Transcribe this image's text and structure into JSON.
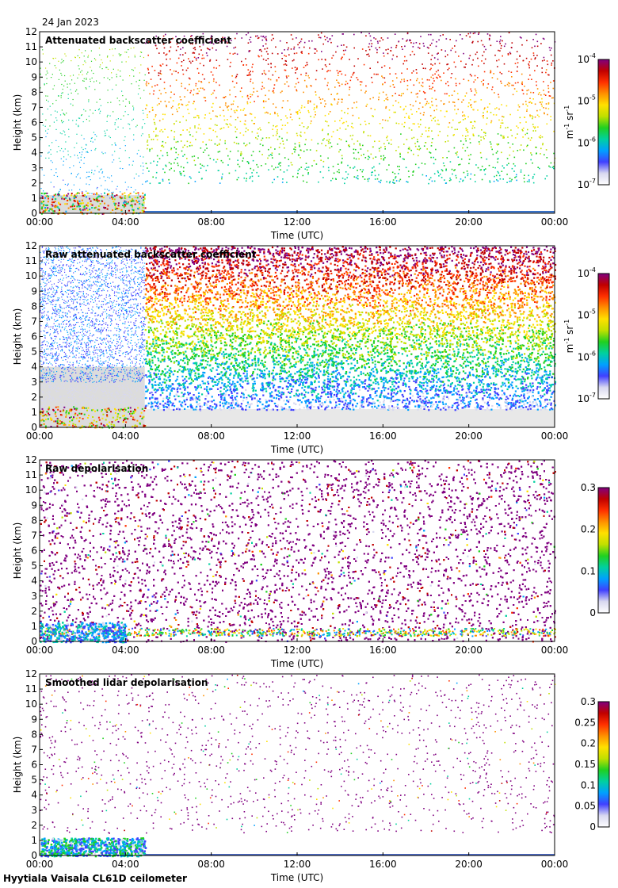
{
  "date_label": "24 Jan 2023",
  "footer_label": "Hyytiala Vaisala CL61D ceilometer",
  "chart_data": [
    {
      "type": "heatmap",
      "title": "Attenuated backscatter coefficient",
      "xlabel": "Time (UTC)",
      "ylabel": "Height (km)",
      "xticks": [
        "00:00",
        "04:00",
        "08:00",
        "12:00",
        "16:00",
        "20:00",
        "00:00"
      ],
      "yticks": [
        "0",
        "1",
        "2",
        "3",
        "4",
        "5",
        "6",
        "7",
        "8",
        "9",
        "10",
        "11",
        "12"
      ],
      "xlim_hours": [
        0,
        24
      ],
      "ylim_km": [
        0,
        12
      ],
      "colorbar": {
        "scale": "log",
        "range": [
          1e-07,
          0.0001
        ],
        "tick_labels": [
          "10^-4",
          "10^-5",
          "10^-6",
          "10^-7"
        ],
        "unit": "m-1 sr-1"
      },
      "pattern": "sparse-signal"
    },
    {
      "type": "heatmap",
      "title": "Raw attenuated backscatter coefficient",
      "xlabel": "Time (UTC)",
      "ylabel": "Height (km)",
      "xticks": [
        "00:00",
        "04:00",
        "08:00",
        "12:00",
        "16:00",
        "20:00",
        "00:00"
      ],
      "yticks": [
        "0",
        "1",
        "2",
        "3",
        "4",
        "5",
        "6",
        "7",
        "8",
        "9",
        "10",
        "11",
        "12"
      ],
      "xlim_hours": [
        0,
        24
      ],
      "ylim_km": [
        0,
        12
      ],
      "colorbar": {
        "scale": "log",
        "range": [
          1e-07,
          0.0001
        ],
        "tick_labels": [
          "10^-4",
          "10^-5",
          "10^-6",
          "10^-7"
        ],
        "unit": "m-1 sr-1"
      },
      "pattern": "dense-noise"
    },
    {
      "type": "heatmap",
      "title": "Raw depolarisation",
      "xlabel": "Time (UTC)",
      "ylabel": "Height (km)",
      "xticks": [
        "00:00",
        "04:00",
        "08:00",
        "12:00",
        "16:00",
        "20:00",
        "00:00"
      ],
      "yticks": [
        "0",
        "1",
        "2",
        "3",
        "4",
        "5",
        "6",
        "7",
        "8",
        "9",
        "10",
        "11",
        "12"
      ],
      "xlim_hours": [
        0,
        24
      ],
      "ylim_km": [
        0,
        12
      ],
      "colorbar": {
        "scale": "linear",
        "range": [
          0,
          0.3
        ],
        "tick_labels": [
          "0.3",
          "0.2",
          "0.1",
          "0"
        ],
        "unit": ""
      },
      "pattern": "purple-noise"
    },
    {
      "type": "heatmap",
      "title": "Smoothed lidar depolarisation",
      "xlabel": "Time (UTC)",
      "ylabel": "Height (km)",
      "xticks": [
        "00:00",
        "04:00",
        "08:00",
        "12:00",
        "16:00",
        "20:00",
        "00:00"
      ],
      "yticks": [
        "0",
        "1",
        "2",
        "3",
        "4",
        "5",
        "6",
        "7",
        "8",
        "9",
        "10",
        "11",
        "12"
      ],
      "xlim_hours": [
        0,
        24
      ],
      "ylim_km": [
        0,
        12
      ],
      "colorbar": {
        "scale": "linear",
        "range": [
          0,
          0.3
        ],
        "tick_labels": [
          "0.3",
          "0.25",
          "0.2",
          "0.15",
          "0.1",
          "0.05",
          "0"
        ],
        "unit": ""
      },
      "pattern": "sparse-depol"
    }
  ],
  "colormap": [
    "#ffffff",
    "#d8d8f0",
    "#4040ff",
    "#00a0ff",
    "#00d0a0",
    "#20d020",
    "#c0e000",
    "#ffe000",
    "#ff9000",
    "#ff3000",
    "#c00000",
    "#800080"
  ]
}
